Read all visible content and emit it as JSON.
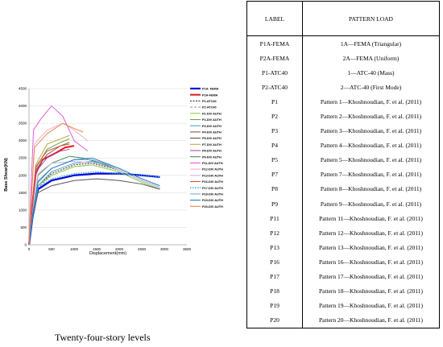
{
  "caption": "Twenty-four-story levels",
  "table": {
    "headers": [
      "LABEL",
      "PATTERN LOAD"
    ],
    "rows": [
      [
        "P1A-FEMA",
        "1A—FEMA (Triangular)"
      ],
      [
        "P2A-FEMA",
        "2A—FEMA (Uniform)"
      ],
      [
        "P1-ATC40",
        "1—ATC-40 (Mass)"
      ],
      [
        "P2-ATC40",
        "2—ATC-40 (First Mode)"
      ],
      [
        "P1",
        "Pattern 1—Khoshnoudian, F. et al. (2011)"
      ],
      [
        "P2",
        "Pattern 2—Khoshnoudian, F. et al. (2011)"
      ],
      [
        "P3",
        "Pattern 3—Khoshnoudian, F. et al. (2011)"
      ],
      [
        "P4",
        "Pattern 4—Khoshnoudian, F. et al. (2011)"
      ],
      [
        "P5",
        "Pattern 5—Khoshnoudian, F. et al. (2011)"
      ],
      [
        "P7",
        "Pattern 7—Khoshnoudian, F. et al. (2011)"
      ],
      [
        "P8",
        "Pattern 8—Khoshnoudian, F. et al. (2011)"
      ],
      [
        "P9",
        "Pattern 9—Khoshnoudian, F. et al. (2011)"
      ],
      [
        "P11",
        "Pattern 11—Khoshnoudian, F. et al. (2011)"
      ],
      [
        "P12",
        "Pattern 12—Khoshnoudian, F. et al. (2011)"
      ],
      [
        "P13",
        "Pattern 13—Khoshnoudian, F. et al. (2011)"
      ],
      [
        "P16",
        "Pattern 16—Khoshnoudian, F. et al. (2011)"
      ],
      [
        "P17",
        "Pattern 17—Khoshnoudian, F. et al. (2011)"
      ],
      [
        "P18",
        "Pattern 18—Khoshnoudian, F. et al. (2011)"
      ],
      [
        "P19",
        "Pattern 19—Khoshnoudian, F. et al. (2011)"
      ],
      [
        "P20",
        "Pattern 20—Khoshnoudian, F. et al. (2011)"
      ]
    ]
  },
  "chart_data": {
    "type": "line",
    "title": "",
    "xlabel": "Displacement(mm)",
    "ylabel": "Base Shear(KN)",
    "xlim": [
      0,
      3500
    ],
    "ylim": [
      0,
      4500
    ],
    "xticks": [
      "0",
      "500",
      "1000",
      "1500",
      "2000",
      "2500",
      "3000",
      "3500"
    ],
    "yticks": [
      "0",
      "500",
      "1000",
      "1500",
      "2000",
      "2500",
      "3000",
      "3500",
      "4000",
      "4500"
    ],
    "grid": true,
    "legend_position": "right",
    "series": [
      {
        "name": "P1A- FEMA",
        "color": "#0000dd",
        "dash": "",
        "width": 2.2,
        "points": [
          [
            0,
            0
          ],
          [
            80,
            800
          ],
          [
            200,
            1600
          ],
          [
            500,
            1850
          ],
          [
            1000,
            2000
          ],
          [
            1500,
            2050
          ],
          [
            2000,
            2050
          ],
          [
            2500,
            2000
          ],
          [
            2900,
            1950
          ]
        ]
      },
      {
        "name": "P2A-FEMA",
        "color": "#e31a1c",
        "dash": "",
        "width": 2.0,
        "points": [
          [
            0,
            0
          ],
          [
            60,
            1000
          ],
          [
            150,
            2050
          ],
          [
            300,
            2450
          ],
          [
            600,
            2650
          ],
          [
            800,
            2800
          ],
          [
            1000,
            2850
          ]
        ]
      },
      {
        "name": "P1-ATC40",
        "color": "#333333",
        "dash": "2,1.5",
        "width": 1.0,
        "points": [
          [
            0,
            0
          ],
          [
            80,
            800
          ],
          [
            200,
            1700
          ],
          [
            500,
            2050
          ],
          [
            1000,
            2300
          ],
          [
            1400,
            2350
          ],
          [
            2000,
            2150
          ],
          [
            2500,
            1850
          ],
          [
            2900,
            1650
          ]
        ]
      },
      {
        "name": "P2-ATC40",
        "color": "#999999",
        "dash": "3,2",
        "width": 1.0,
        "points": [
          [
            0,
            0
          ],
          [
            80,
            800
          ],
          [
            200,
            1650
          ],
          [
            500,
            2000
          ],
          [
            1000,
            2250
          ],
          [
            1400,
            2300
          ],
          [
            2000,
            2100
          ],
          [
            2500,
            1800
          ],
          [
            2900,
            1600
          ]
        ]
      },
      {
        "name": "P1-DIV AUTH",
        "color": "#8fce3f",
        "dash": "",
        "width": 1.0,
        "points": [
          [
            0,
            0
          ],
          [
            80,
            800
          ],
          [
            200,
            1700
          ],
          [
            500,
            2000
          ],
          [
            1000,
            2250
          ],
          [
            1400,
            2300
          ],
          [
            2000,
            2100
          ],
          [
            2500,
            1800
          ],
          [
            2900,
            1600
          ]
        ]
      },
      {
        "name": "P2-DIV AUTH",
        "color": "#6aa84f",
        "dash": "",
        "width": 1.0,
        "points": [
          [
            0,
            0
          ],
          [
            60,
            1000
          ],
          [
            150,
            2200
          ],
          [
            400,
            2750
          ],
          [
            700,
            2950
          ],
          [
            900,
            3050
          ]
        ]
      },
      {
        "name": "P3-DIV AUTH",
        "color": "#5b9bd5",
        "dash": "",
        "width": 1.0,
        "points": [
          [
            0,
            0
          ],
          [
            80,
            800
          ],
          [
            200,
            1700
          ],
          [
            500,
            2100
          ],
          [
            1000,
            2350
          ],
          [
            1400,
            2400
          ],
          [
            2000,
            2150
          ],
          [
            2500,
            1850
          ],
          [
            2900,
            1650
          ]
        ]
      },
      {
        "name": "P4-DIV AUTH",
        "color": "#8c564b",
        "dash": "",
        "width": 1.0,
        "points": [
          [
            0,
            0
          ],
          [
            60,
            1000
          ],
          [
            150,
            2150
          ],
          [
            400,
            2600
          ],
          [
            700,
            2850
          ],
          [
            900,
            2950
          ]
        ]
      },
      {
        "name": "P5-DIV AUTH",
        "color": "#555555",
        "dash": "",
        "width": 1.0,
        "points": [
          [
            0,
            0
          ],
          [
            80,
            800
          ],
          [
            200,
            1500
          ],
          [
            500,
            1700
          ],
          [
            1000,
            1850
          ],
          [
            1500,
            1900
          ],
          [
            2000,
            1850
          ],
          [
            2500,
            1750
          ],
          [
            2900,
            1600
          ]
        ]
      },
      {
        "name": "P7-DIV AUTH",
        "color": "#bfa840",
        "dash": "",
        "width": 1.0,
        "points": [
          [
            0,
            0
          ],
          [
            60,
            1050
          ],
          [
            150,
            2300
          ],
          [
            400,
            2900
          ],
          [
            700,
            3050
          ],
          [
            900,
            3150
          ]
        ]
      },
      {
        "name": "P8-DIV AUTH",
        "color": "#b14aa8",
        "dash": "",
        "width": 1.0,
        "points": [
          [
            0,
            0
          ],
          [
            60,
            1000
          ],
          [
            150,
            2100
          ],
          [
            400,
            2500
          ],
          [
            700,
            2700
          ],
          [
            900,
            2750
          ]
        ]
      },
      {
        "name": "P9-DIV AUTH",
        "color": "#3f8f5f",
        "dash": "",
        "width": 1.0,
        "points": [
          [
            0,
            0
          ],
          [
            80,
            900
          ],
          [
            200,
            2000
          ],
          [
            500,
            2350
          ],
          [
            900,
            2550
          ],
          [
            1200,
            2500
          ],
          [
            1600,
            2350
          ],
          [
            2000,
            2150
          ]
        ]
      },
      {
        "name": "P11-DIV AUTH",
        "color": "#e05ce0",
        "dash": "",
        "width": 1.0,
        "points": [
          [
            0,
            0
          ],
          [
            40,
            1500
          ],
          [
            100,
            3300
          ],
          [
            250,
            3600
          ],
          [
            500,
            4000
          ],
          [
            750,
            3700
          ],
          [
            1000,
            3000
          ],
          [
            1300,
            2700
          ]
        ]
      },
      {
        "name": "P12-DIV AUTH",
        "color": "#f5b3d3",
        "dash": "",
        "width": 1.0,
        "points": [
          [
            0,
            0
          ],
          [
            50,
            1300
          ],
          [
            120,
            2900
          ],
          [
            400,
            3300
          ],
          [
            750,
            3500
          ],
          [
            1000,
            3300
          ],
          [
            1300,
            3000
          ]
        ]
      },
      {
        "name": "P13-DIV AUTH",
        "color": "#c9b3e6",
        "dash": "",
        "width": 1.0,
        "points": [
          [
            0,
            0
          ],
          [
            80,
            900
          ],
          [
            200,
            2050
          ],
          [
            500,
            2350
          ],
          [
            1000,
            2400
          ],
          [
            1500,
            2350
          ],
          [
            2000,
            2150
          ],
          [
            2500,
            1850
          ],
          [
            2900,
            1650
          ]
        ]
      },
      {
        "name": "P16-DIV AUTH",
        "color": "#d94f3d",
        "dash": "",
        "width": 1.0,
        "points": [
          [
            0,
            0
          ],
          [
            60,
            1050
          ],
          [
            150,
            2250
          ],
          [
            400,
            2700
          ],
          [
            700,
            2850
          ],
          [
            900,
            2900
          ]
        ]
      },
      {
        "name": "P17-DIV AUTH",
        "color": "#2aa8c9",
        "dash": "1.5,1.5",
        "width": 1.3,
        "points": [
          [
            0,
            0
          ],
          [
            80,
            800
          ],
          [
            200,
            1650
          ],
          [
            500,
            1900
          ],
          [
            1000,
            2050
          ],
          [
            1500,
            2100
          ],
          [
            2000,
            2050
          ],
          [
            2500,
            2000
          ],
          [
            2900,
            1950
          ]
        ]
      },
      {
        "name": "P18-DIV AUTH",
        "color": "#8fa6c8",
        "dash": "",
        "width": 1.0,
        "points": [
          [
            0,
            0
          ],
          [
            80,
            850
          ],
          [
            200,
            1850
          ],
          [
            500,
            2200
          ],
          [
            1000,
            2450
          ],
          [
            1400,
            2450
          ],
          [
            2000,
            2200
          ],
          [
            2500,
            1900
          ],
          [
            2900,
            1700
          ]
        ]
      },
      {
        "name": "P19-DIV AUTH",
        "color": "#1f7fbf",
        "dash": "",
        "width": 1.0,
        "points": [
          [
            0,
            0
          ],
          [
            80,
            850
          ],
          [
            200,
            1800
          ],
          [
            500,
            2200
          ],
          [
            1000,
            2450
          ],
          [
            1400,
            2500
          ],
          [
            2000,
            2200
          ],
          [
            2500,
            1900
          ],
          [
            2900,
            1700
          ]
        ]
      },
      {
        "name": "P20-DIV AUTH",
        "color": "#e8894a",
        "dash": "",
        "width": 1.0,
        "points": [
          [
            0,
            0
          ],
          [
            50,
            1250
          ],
          [
            120,
            2800
          ],
          [
            400,
            3200
          ],
          [
            750,
            3500
          ],
          [
            1000,
            3350
          ],
          [
            1200,
            3250
          ]
        ]
      }
    ]
  }
}
